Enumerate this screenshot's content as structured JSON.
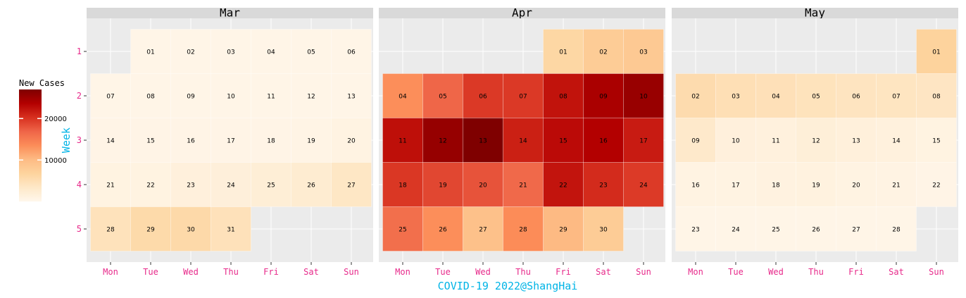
{
  "chart_data": {
    "type": "heatmap",
    "subtype": "calendar",
    "xlabel": "COVID-19 2022@ShangHai",
    "ylabel": "Week",
    "weekday_labels": [
      "Mon",
      "Tue",
      "Wed",
      "Thu",
      "Fri",
      "Sat",
      "Sun"
    ],
    "week_labels": [
      "1",
      "2",
      "3",
      "4",
      "5"
    ],
    "legend": {
      "title": "New Cases",
      "ticks": [
        10000,
        20000
      ],
      "tick_labels": [
        "10000",
        "20000"
      ],
      "range": [
        0,
        27000
      ],
      "position": "left",
      "palette": [
        "#fff7ec",
        "#fee8c8",
        "#fdd49e",
        "#fdbb84",
        "#fc8d59",
        "#ef6548",
        "#d7301f",
        "#b30000",
        "#7f0000"
      ]
    },
    "facets": [
      {
        "title": "Mar",
        "cells": [
          {
            "day": "01",
            "week": 1,
            "weekday": 1,
            "value": 500
          },
          {
            "day": "02",
            "week": 1,
            "weekday": 2,
            "value": 500
          },
          {
            "day": "03",
            "week": 1,
            "weekday": 3,
            "value": 500
          },
          {
            "day": "04",
            "week": 1,
            "weekday": 4,
            "value": 500
          },
          {
            "day": "05",
            "week": 1,
            "weekday": 5,
            "value": 500
          },
          {
            "day": "06",
            "week": 1,
            "weekday": 6,
            "value": 500
          },
          {
            "day": "07",
            "week": 2,
            "weekday": 0,
            "value": 500
          },
          {
            "day": "08",
            "week": 2,
            "weekday": 1,
            "value": 500
          },
          {
            "day": "09",
            "week": 2,
            "weekday": 2,
            "value": 500
          },
          {
            "day": "10",
            "week": 2,
            "weekday": 3,
            "value": 500
          },
          {
            "day": "11",
            "week": 2,
            "weekday": 4,
            "value": 500
          },
          {
            "day": "12",
            "week": 2,
            "weekday": 5,
            "value": 500
          },
          {
            "day": "13",
            "week": 2,
            "weekday": 6,
            "value": 500
          },
          {
            "day": "14",
            "week": 3,
            "weekday": 0,
            "value": 600
          },
          {
            "day": "15",
            "week": 3,
            "weekday": 1,
            "value": 600
          },
          {
            "day": "16",
            "week": 3,
            "weekday": 2,
            "value": 600
          },
          {
            "day": "17",
            "week": 3,
            "weekday": 3,
            "value": 600
          },
          {
            "day": "18",
            "week": 3,
            "weekday": 4,
            "value": 600
          },
          {
            "day": "19",
            "week": 3,
            "weekday": 5,
            "value": 700
          },
          {
            "day": "20",
            "week": 3,
            "weekday": 6,
            "value": 900
          },
          {
            "day": "21",
            "week": 4,
            "weekday": 0,
            "value": 1000
          },
          {
            "day": "22",
            "week": 4,
            "weekday": 1,
            "value": 1000
          },
          {
            "day": "23",
            "week": 4,
            "weekday": 2,
            "value": 1500
          },
          {
            "day": "24",
            "week": 4,
            "weekday": 3,
            "value": 1700
          },
          {
            "day": "25",
            "week": 4,
            "weekday": 4,
            "value": 2100
          },
          {
            "day": "26",
            "week": 4,
            "weekday": 5,
            "value": 2500
          },
          {
            "day": "27",
            "week": 4,
            "weekday": 6,
            "value": 3600
          },
          {
            "day": "28",
            "week": 5,
            "weekday": 0,
            "value": 4400
          },
          {
            "day": "29",
            "week": 5,
            "weekday": 1,
            "value": 5800
          },
          {
            "day": "30",
            "week": 5,
            "weekday": 2,
            "value": 5900
          },
          {
            "day": "31",
            "week": 5,
            "weekday": 3,
            "value": 4500
          }
        ]
      },
      {
        "title": "Apr",
        "cells": [
          {
            "day": "01",
            "week": 1,
            "weekday": 4,
            "value": 6300
          },
          {
            "day": "02",
            "week": 1,
            "weekday": 5,
            "value": 7800
          },
          {
            "day": "03",
            "week": 1,
            "weekday": 6,
            "value": 8200
          },
          {
            "day": "04",
            "week": 2,
            "weekday": 0,
            "value": 13400
          },
          {
            "day": "05",
            "week": 2,
            "weekday": 1,
            "value": 16800
          },
          {
            "day": "06",
            "week": 2,
            "weekday": 2,
            "value": 19700
          },
          {
            "day": "07",
            "week": 2,
            "weekday": 3,
            "value": 19700
          },
          {
            "day": "08",
            "week": 2,
            "weekday": 4,
            "value": 22300
          },
          {
            "day": "09",
            "week": 2,
            "weekday": 5,
            "value": 24200
          },
          {
            "day": "10",
            "week": 2,
            "weekday": 6,
            "value": 25400
          },
          {
            "day": "11",
            "week": 3,
            "weekday": 0,
            "value": 22600
          },
          {
            "day": "12",
            "week": 3,
            "weekday": 1,
            "value": 25500
          },
          {
            "day": "13",
            "week": 3,
            "weekday": 2,
            "value": 27200
          },
          {
            "day": "14",
            "week": 3,
            "weekday": 3,
            "value": 21400
          },
          {
            "day": "15",
            "week": 3,
            "weekday": 4,
            "value": 22900
          },
          {
            "day": "16",
            "week": 3,
            "weekday": 5,
            "value": 23600
          },
          {
            "day": "17",
            "week": 3,
            "weekday": 6,
            "value": 21700
          },
          {
            "day": "18",
            "week": 4,
            "weekday": 0,
            "value": 19800
          },
          {
            "day": "19",
            "week": 4,
            "weekday": 1,
            "value": 18800
          },
          {
            "day": "20",
            "week": 4,
            "weekday": 2,
            "value": 18000
          },
          {
            "day": "21",
            "week": 4,
            "weekday": 3,
            "value": 16500
          },
          {
            "day": "22",
            "week": 4,
            "weekday": 4,
            "value": 22200
          },
          {
            "day": "23",
            "week": 4,
            "weekday": 5,
            "value": 20600
          },
          {
            "day": "24",
            "week": 4,
            "weekday": 6,
            "value": 19600
          },
          {
            "day": "25",
            "week": 5,
            "weekday": 0,
            "value": 16000
          },
          {
            "day": "26",
            "week": 5,
            "weekday": 1,
            "value": 13400
          },
          {
            "day": "27",
            "week": 5,
            "weekday": 2,
            "value": 9300
          },
          {
            "day": "28",
            "week": 5,
            "weekday": 3,
            "value": 13600
          },
          {
            "day": "29",
            "week": 5,
            "weekday": 4,
            "value": 10200
          },
          {
            "day": "30",
            "week": 5,
            "weekday": 5,
            "value": 7800
          }
        ]
      },
      {
        "title": "May",
        "cells": [
          {
            "day": "01",
            "week": 1,
            "weekday": 6,
            "value": 6900
          },
          {
            "day": "02",
            "week": 2,
            "weekday": 0,
            "value": 5500
          },
          {
            "day": "03",
            "week": 2,
            "weekday": 1,
            "value": 4900
          },
          {
            "day": "04",
            "week": 2,
            "weekday": 2,
            "value": 4700
          },
          {
            "day": "05",
            "week": 2,
            "weekday": 3,
            "value": 4300
          },
          {
            "day": "06",
            "week": 2,
            "weekday": 4,
            "value": 4000
          },
          {
            "day": "07",
            "week": 2,
            "weekday": 5,
            "value": 3900
          },
          {
            "day": "08",
            "week": 2,
            "weekday": 6,
            "value": 3800
          },
          {
            "day": "09",
            "week": 3,
            "weekday": 0,
            "value": 3100
          },
          {
            "day": "10",
            "week": 3,
            "weekday": 1,
            "value": 1500
          },
          {
            "day": "11",
            "week": 3,
            "weekday": 2,
            "value": 1400
          },
          {
            "day": "12",
            "week": 3,
            "weekday": 3,
            "value": 1900
          },
          {
            "day": "13",
            "week": 3,
            "weekday": 4,
            "value": 1600
          },
          {
            "day": "14",
            "week": 3,
            "weekday": 5,
            "value": 1400
          },
          {
            "day": "15",
            "week": 3,
            "weekday": 6,
            "value": 1000
          },
          {
            "day": "16",
            "week": 4,
            "weekday": 0,
            "value": 900
          },
          {
            "day": "17",
            "week": 4,
            "weekday": 1,
            "value": 900
          },
          {
            "day": "18",
            "week": 4,
            "weekday": 2,
            "value": 1100
          },
          {
            "day": "19",
            "week": 4,
            "weekday": 3,
            "value": 1200
          },
          {
            "day": "20",
            "week": 4,
            "weekday": 4,
            "value": 900
          },
          {
            "day": "21",
            "week": 4,
            "weekday": 5,
            "value": 800
          },
          {
            "day": "22",
            "week": 4,
            "weekday": 6,
            "value": 600
          },
          {
            "day": "23",
            "week": 5,
            "weekday": 0,
            "value": 500
          },
          {
            "day": "24",
            "week": 5,
            "weekday": 1,
            "value": 500
          },
          {
            "day": "25",
            "week": 5,
            "weekday": 2,
            "value": 500
          },
          {
            "day": "26",
            "week": 5,
            "weekday": 3,
            "value": 500
          },
          {
            "day": "27",
            "week": 5,
            "weekday": 4,
            "value": 500
          },
          {
            "day": "28",
            "week": 5,
            "weekday": 5,
            "value": 500
          }
        ]
      }
    ],
    "colors": {
      "panel_bg": "#ebebeb",
      "strip_bg": "#d9d9d9",
      "grid": "#ffffff",
      "axis_text": "#e7298a",
      "xlabel_color": "#00b4e6",
      "ylabel_color": "#00b4e6",
      "tile_border": "#ffffff"
    }
  }
}
